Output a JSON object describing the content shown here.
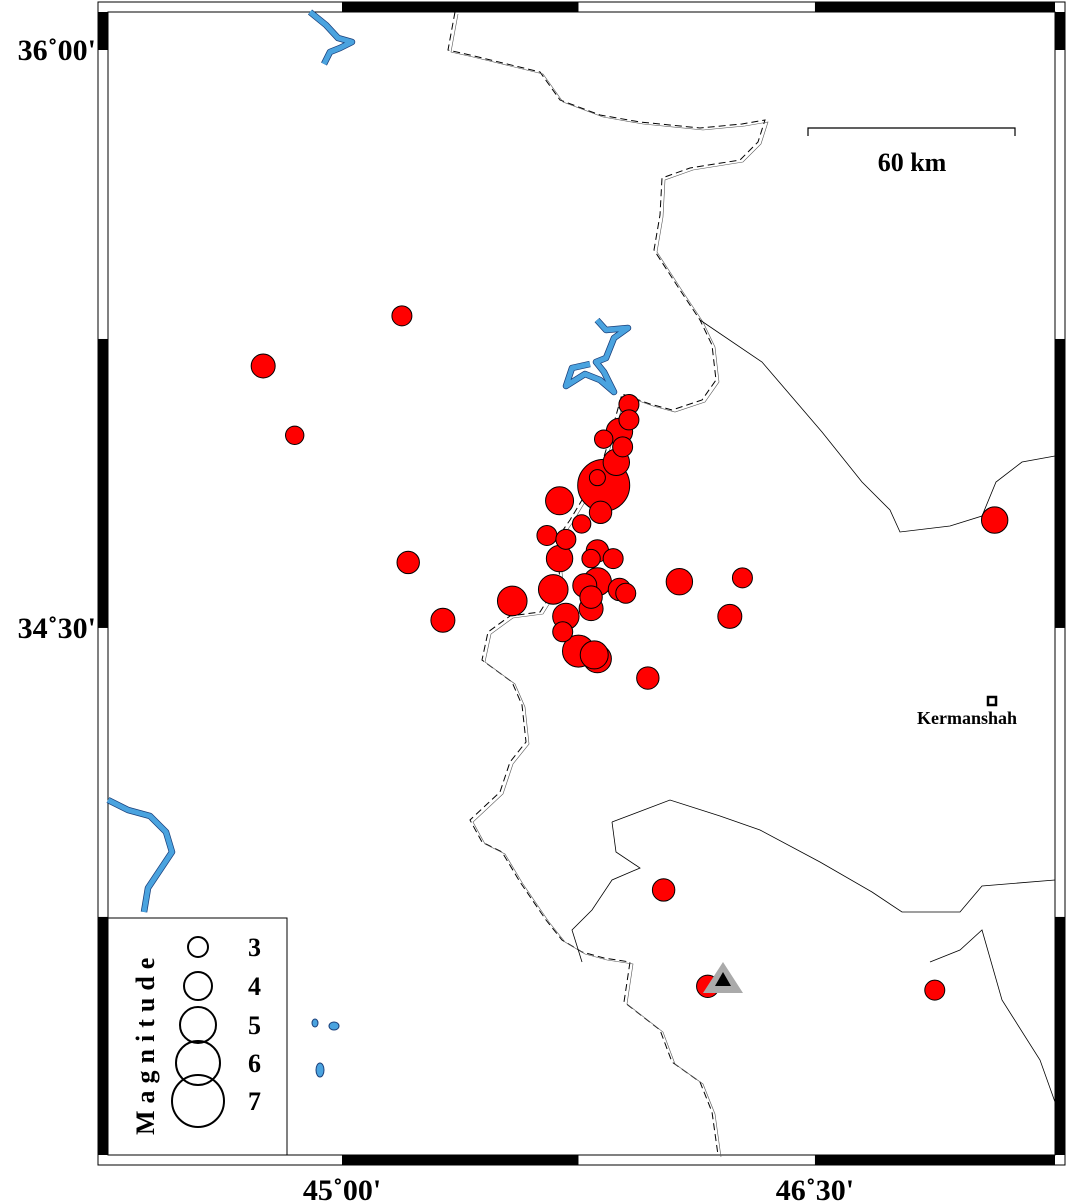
{
  "map": {
    "lon_ticks": [
      {
        "value": 45.0,
        "label": "45˚00'"
      },
      {
        "value": 46.5,
        "label": "46˚30'"
      }
    ],
    "lat_ticks": [
      {
        "value": 36.0,
        "label": "36˚00'"
      },
      {
        "value": 34.5,
        "label": "34˚30'"
      }
    ],
    "scale_bar": {
      "label": "60 km",
      "length_km": 60
    },
    "city": {
      "name": "Kermanshah",
      "lon": 46.98,
      "lat": 34.32
    },
    "station": {
      "lon": 46.21,
      "lat": 33.67,
      "symbol": "triangle"
    },
    "colors": {
      "event_fill": "#ff0000",
      "water": "#4aa3df",
      "station": "#000000",
      "station_halo": "#aaaaaa"
    }
  },
  "legend": {
    "title": "Magnitude",
    "entries": [
      {
        "mag": 3,
        "label": "3"
      },
      {
        "mag": 4,
        "label": "4"
      },
      {
        "mag": 5,
        "label": "5"
      },
      {
        "mag": 6,
        "label": "6"
      },
      {
        "mag": 7,
        "label": "7"
      }
    ]
  },
  "events": [
    {
      "lon": 45.19,
      "lat": 35.31,
      "mag": 3.0
    },
    {
      "lon": 44.75,
      "lat": 35.18,
      "mag": 3.5
    },
    {
      "lon": 44.85,
      "lat": 35.0,
      "mag": 2.8
    },
    {
      "lon": 45.21,
      "lat": 34.67,
      "mag": 3.3
    },
    {
      "lon": 45.32,
      "lat": 34.52,
      "mag": 3.5
    },
    {
      "lon": 45.54,
      "lat": 34.57,
      "mag": 4.2
    },
    {
      "lon": 45.67,
      "lat": 34.6,
      "mag": 4.2
    },
    {
      "lon": 45.69,
      "lat": 34.83,
      "mag": 4.0
    },
    {
      "lon": 45.69,
      "lat": 34.68,
      "mag": 3.8
    },
    {
      "lon": 45.65,
      "lat": 34.74,
      "mag": 3.0
    },
    {
      "lon": 45.71,
      "lat": 34.73,
      "mag": 3.0
    },
    {
      "lon": 45.76,
      "lat": 34.77,
      "mag": 2.8
    },
    {
      "lon": 45.91,
      "lat": 35.08,
      "mag": 3.0
    },
    {
      "lon": 45.91,
      "lat": 35.04,
      "mag": 3.0
    },
    {
      "lon": 45.88,
      "lat": 35.01,
      "mag": 3.8
    },
    {
      "lon": 45.83,
      "lat": 34.99,
      "mag": 2.8
    },
    {
      "lon": 45.89,
      "lat": 34.97,
      "mag": 3.0
    },
    {
      "lon": 45.83,
      "lat": 34.87,
      "mag": 7.0
    },
    {
      "lon": 45.87,
      "lat": 34.93,
      "mag": 3.8
    },
    {
      "lon": 45.81,
      "lat": 34.89,
      "mag": 2.5
    },
    {
      "lon": 45.82,
      "lat": 34.8,
      "mag": 3.3
    },
    {
      "lon": 45.81,
      "lat": 34.7,
      "mag": 3.3
    },
    {
      "lon": 45.86,
      "lat": 34.68,
      "mag": 3.0
    },
    {
      "lon": 45.79,
      "lat": 34.68,
      "mag": 2.8
    },
    {
      "lon": 45.81,
      "lat": 34.62,
      "mag": 4.0
    },
    {
      "lon": 45.77,
      "lat": 34.61,
      "mag": 3.5
    },
    {
      "lon": 45.79,
      "lat": 34.58,
      "mag": 3.3
    },
    {
      "lon": 45.88,
      "lat": 34.6,
      "mag": 3.3
    },
    {
      "lon": 45.9,
      "lat": 34.59,
      "mag": 3.0
    },
    {
      "lon": 45.79,
      "lat": 34.55,
      "mag": 3.5
    },
    {
      "lon": 45.71,
      "lat": 34.53,
      "mag": 3.8
    },
    {
      "lon": 45.7,
      "lat": 34.49,
      "mag": 3.0
    },
    {
      "lon": 45.75,
      "lat": 34.44,
      "mag": 4.5
    },
    {
      "lon": 45.81,
      "lat": 34.42,
      "mag": 4.0
    },
    {
      "lon": 45.8,
      "lat": 34.43,
      "mag": 4.0
    },
    {
      "lon": 45.97,
      "lat": 34.37,
      "mag": 3.3
    },
    {
      "lon": 46.07,
      "lat": 34.62,
      "mag": 3.8
    },
    {
      "lon": 46.27,
      "lat": 34.63,
      "mag": 3.0
    },
    {
      "lon": 46.23,
      "lat": 34.53,
      "mag": 3.5
    },
    {
      "lon": 46.02,
      "lat": 33.82,
      "mag": 3.3
    },
    {
      "lon": 46.16,
      "lat": 33.57,
      "mag": 3.3
    },
    {
      "lon": 46.88,
      "lat": 33.56,
      "mag": 3.0
    },
    {
      "lon": 47.07,
      "lat": 34.78,
      "mag": 3.8
    }
  ]
}
